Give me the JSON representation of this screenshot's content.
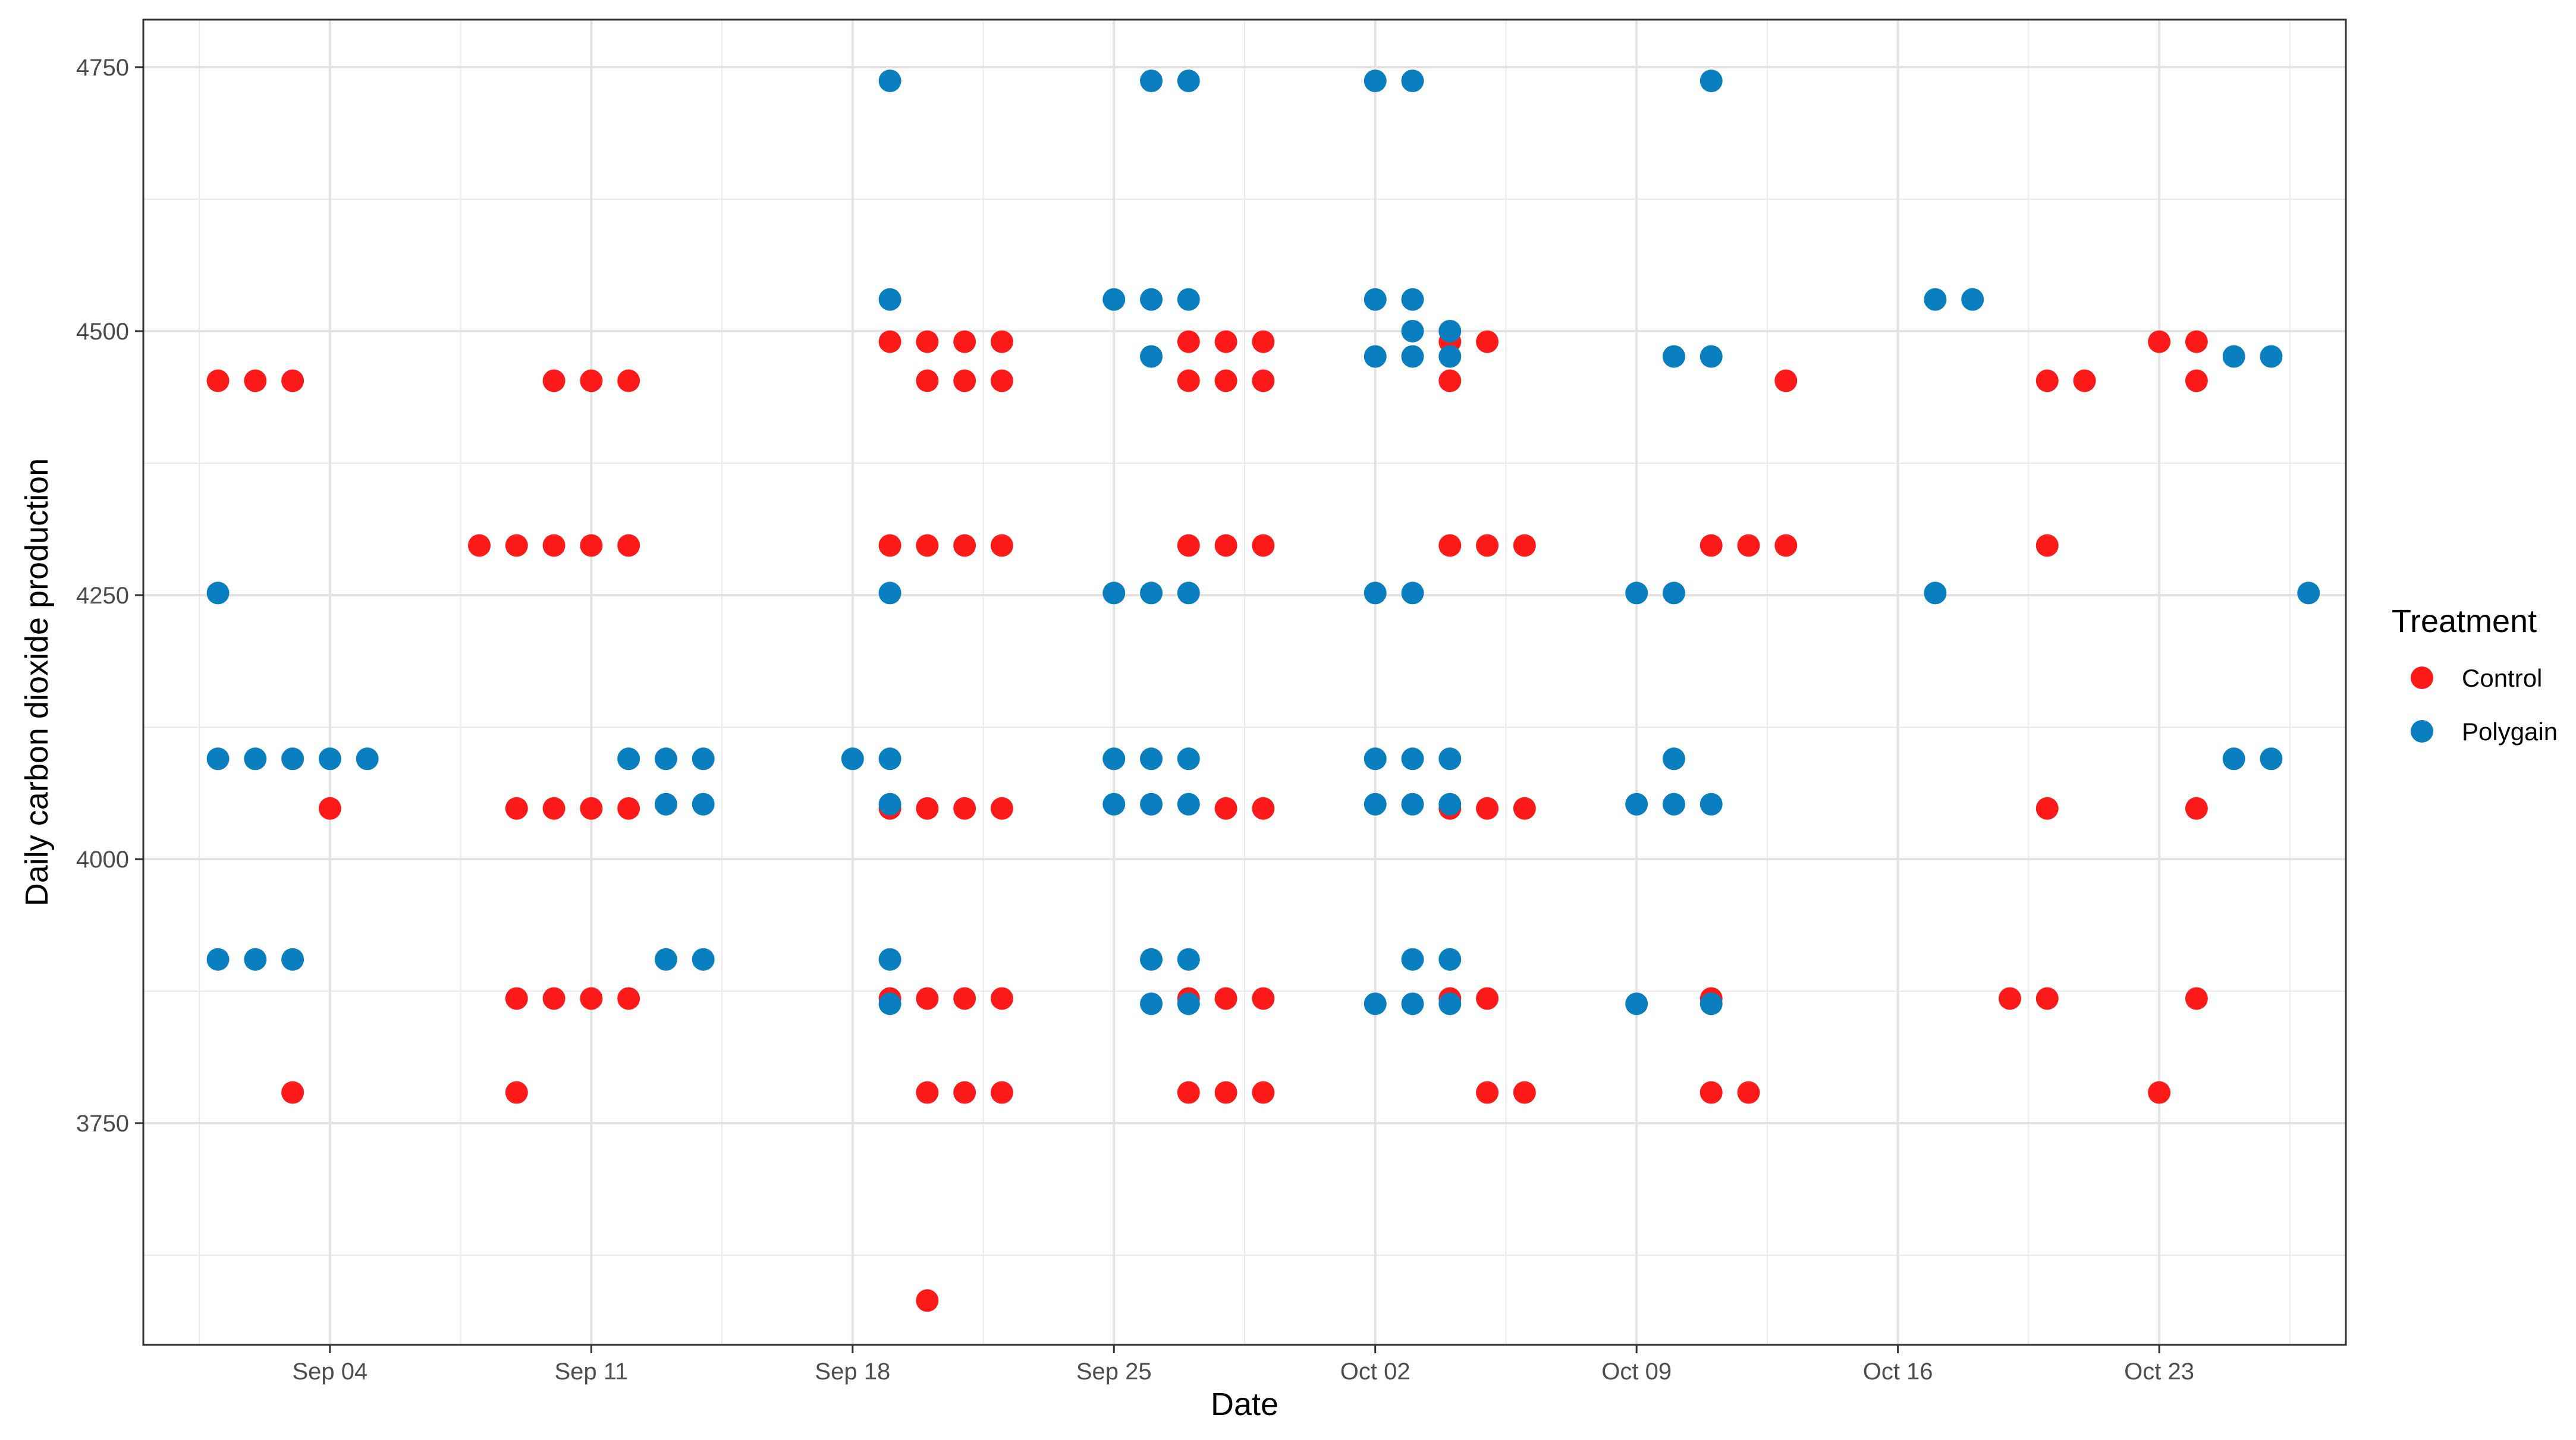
{
  "chart_data": {
    "type": "scatter",
    "title": "",
    "xlabel": "Date",
    "ylabel": "Daily carbon dioxide production",
    "x_axis_type": "date",
    "xlim": [
      "2023-08-30",
      "2023-10-28"
    ],
    "ylim": [
      3540,
      4795
    ],
    "x_ticks": [
      {
        "date": "2023-09-04",
        "label": "Sep 04"
      },
      {
        "date": "2023-09-11",
        "label": "Sep 11"
      },
      {
        "date": "2023-09-18",
        "label": "Sep 18"
      },
      {
        "date": "2023-09-25",
        "label": "Sep 25"
      },
      {
        "date": "2023-10-02",
        "label": "Oct 02"
      },
      {
        "date": "2023-10-09",
        "label": "Oct 09"
      },
      {
        "date": "2023-10-16",
        "label": "Oct 16"
      },
      {
        "date": "2023-10-23",
        "label": "Oct 23"
      }
    ],
    "y_ticks": [
      3750,
      4000,
      4250,
      4500,
      4750
    ],
    "grid": true,
    "legend": {
      "title": "Treatment",
      "position": "right"
    },
    "series": [
      {
        "name": "Control",
        "color": "#ff1a1a",
        "points": [
          [
            "2023-09-01",
            4453
          ],
          [
            "2023-09-02",
            4453
          ],
          [
            "2023-09-03",
            4453
          ],
          [
            "2023-09-04",
            4048
          ],
          [
            "2023-09-03",
            3779
          ],
          [
            "2023-09-08",
            4297
          ],
          [
            "2023-09-09",
            4297
          ],
          [
            "2023-09-10",
            4297
          ],
          [
            "2023-09-11",
            4297
          ],
          [
            "2023-09-12",
            4297
          ],
          [
            "2023-09-10",
            4453
          ],
          [
            "2023-09-11",
            4453
          ],
          [
            "2023-09-12",
            4453
          ],
          [
            "2023-09-09",
            4048
          ],
          [
            "2023-09-10",
            4048
          ],
          [
            "2023-09-11",
            4048
          ],
          [
            "2023-09-12",
            4048
          ],
          [
            "2023-09-09",
            3868
          ],
          [
            "2023-09-10",
            3868
          ],
          [
            "2023-09-11",
            3868
          ],
          [
            "2023-09-12",
            3868
          ],
          [
            "2023-09-09",
            3779
          ],
          [
            "2023-09-19",
            4490
          ],
          [
            "2023-09-20",
            4490
          ],
          [
            "2023-09-21",
            4490
          ],
          [
            "2023-09-22",
            4490
          ],
          [
            "2023-09-20",
            4453
          ],
          [
            "2023-09-21",
            4453
          ],
          [
            "2023-09-22",
            4453
          ],
          [
            "2023-09-19",
            4297
          ],
          [
            "2023-09-20",
            4297
          ],
          [
            "2023-09-21",
            4297
          ],
          [
            "2023-09-22",
            4297
          ],
          [
            "2023-09-19",
            4048
          ],
          [
            "2023-09-20",
            4048
          ],
          [
            "2023-09-21",
            4048
          ],
          [
            "2023-09-22",
            4048
          ],
          [
            "2023-09-19",
            3868
          ],
          [
            "2023-09-20",
            3868
          ],
          [
            "2023-09-21",
            3868
          ],
          [
            "2023-09-22",
            3868
          ],
          [
            "2023-09-20",
            3779
          ],
          [
            "2023-09-21",
            3779
          ],
          [
            "2023-09-22",
            3779
          ],
          [
            "2023-09-20",
            3582
          ],
          [
            "2023-09-27",
            4490
          ],
          [
            "2023-09-28",
            4490
          ],
          [
            "2023-09-29",
            4490
          ],
          [
            "2023-09-27",
            4453
          ],
          [
            "2023-09-28",
            4453
          ],
          [
            "2023-09-29",
            4453
          ],
          [
            "2023-09-27",
            4297
          ],
          [
            "2023-09-28",
            4297
          ],
          [
            "2023-09-29",
            4297
          ],
          [
            "2023-09-28",
            4048
          ],
          [
            "2023-09-29",
            4048
          ],
          [
            "2023-09-27",
            3868
          ],
          [
            "2023-09-28",
            3868
          ],
          [
            "2023-09-29",
            3868
          ],
          [
            "2023-09-27",
            3779
          ],
          [
            "2023-09-28",
            3779
          ],
          [
            "2023-09-29",
            3779
          ],
          [
            "2023-10-04",
            4490
          ],
          [
            "2023-10-05",
            4490
          ],
          [
            "2023-10-04",
            4453
          ],
          [
            "2023-10-04",
            4297
          ],
          [
            "2023-10-05",
            4297
          ],
          [
            "2023-10-06",
            4297
          ],
          [
            "2023-10-04",
            4048
          ],
          [
            "2023-10-05",
            4048
          ],
          [
            "2023-10-06",
            4048
          ],
          [
            "2023-10-04",
            3868
          ],
          [
            "2023-10-05",
            3868
          ],
          [
            "2023-10-05",
            3779
          ],
          [
            "2023-10-06",
            3779
          ],
          [
            "2023-10-13",
            4453
          ],
          [
            "2023-10-11",
            4297
          ],
          [
            "2023-10-12",
            4297
          ],
          [
            "2023-10-13",
            4297
          ],
          [
            "2023-10-11",
            3868
          ],
          [
            "2023-10-11",
            3779
          ],
          [
            "2023-10-12",
            3779
          ],
          [
            "2023-10-20",
            4453
          ],
          [
            "2023-10-21",
            4453
          ],
          [
            "2023-10-20",
            4297
          ],
          [
            "2023-10-20",
            4048
          ],
          [
            "2023-10-19",
            3868
          ],
          [
            "2023-10-20",
            3868
          ],
          [
            "2023-10-23",
            4490
          ],
          [
            "2023-10-24",
            4490
          ],
          [
            "2023-10-24",
            4453
          ],
          [
            "2023-10-24",
            4048
          ],
          [
            "2023-10-24",
            3868
          ],
          [
            "2023-10-23",
            3779
          ]
        ]
      },
      {
        "name": "Polygain",
        "color": "#0a7fc0",
        "points": [
          [
            "2023-09-01",
            4252
          ],
          [
            "2023-09-01",
            4095
          ],
          [
            "2023-09-02",
            4095
          ],
          [
            "2023-09-03",
            4095
          ],
          [
            "2023-09-04",
            4095
          ],
          [
            "2023-09-05",
            4095
          ],
          [
            "2023-09-01",
            3905
          ],
          [
            "2023-09-02",
            3905
          ],
          [
            "2023-09-03",
            3905
          ],
          [
            "2023-09-12",
            4095
          ],
          [
            "2023-09-13",
            4095
          ],
          [
            "2023-09-14",
            4095
          ],
          [
            "2023-09-13",
            4052
          ],
          [
            "2023-09-14",
            4052
          ],
          [
            "2023-09-13",
            3905
          ],
          [
            "2023-09-14",
            3905
          ],
          [
            "2023-09-19",
            4737
          ],
          [
            "2023-09-19",
            4530
          ],
          [
            "2023-09-19",
            4252
          ],
          [
            "2023-09-18",
            4095
          ],
          [
            "2023-09-19",
            4095
          ],
          [
            "2023-09-19",
            4052
          ],
          [
            "2023-09-19",
            3905
          ],
          [
            "2023-09-19",
            3863
          ],
          [
            "2023-09-26",
            4737
          ],
          [
            "2023-09-27",
            4737
          ],
          [
            "2023-09-25",
            4530
          ],
          [
            "2023-09-26",
            4530
          ],
          [
            "2023-09-27",
            4530
          ],
          [
            "2023-09-26",
            4476
          ],
          [
            "2023-09-25",
            4252
          ],
          [
            "2023-09-26",
            4252
          ],
          [
            "2023-09-27",
            4252
          ],
          [
            "2023-09-25",
            4095
          ],
          [
            "2023-09-26",
            4095
          ],
          [
            "2023-09-27",
            4095
          ],
          [
            "2023-09-25",
            4052
          ],
          [
            "2023-09-26",
            4052
          ],
          [
            "2023-09-27",
            4052
          ],
          [
            "2023-09-26",
            3905
          ],
          [
            "2023-09-27",
            3905
          ],
          [
            "2023-09-26",
            3863
          ],
          [
            "2023-09-27",
            3863
          ],
          [
            "2023-10-02",
            4737
          ],
          [
            "2023-10-03",
            4737
          ],
          [
            "2023-10-02",
            4530
          ],
          [
            "2023-10-03",
            4530
          ],
          [
            "2023-10-03",
            4500
          ],
          [
            "2023-10-04",
            4500
          ],
          [
            "2023-10-02",
            4476
          ],
          [
            "2023-10-03",
            4476
          ],
          [
            "2023-10-04",
            4476
          ],
          [
            "2023-10-02",
            4252
          ],
          [
            "2023-10-03",
            4252
          ],
          [
            "2023-10-02",
            4095
          ],
          [
            "2023-10-03",
            4095
          ],
          [
            "2023-10-04",
            4095
          ],
          [
            "2023-10-02",
            4052
          ],
          [
            "2023-10-03",
            4052
          ],
          [
            "2023-10-04",
            4052
          ],
          [
            "2023-10-03",
            3905
          ],
          [
            "2023-10-04",
            3905
          ],
          [
            "2023-10-02",
            3863
          ],
          [
            "2023-10-03",
            3863
          ],
          [
            "2023-10-04",
            3863
          ],
          [
            "2023-10-11",
            4737
          ],
          [
            "2023-10-10",
            4476
          ],
          [
            "2023-10-11",
            4476
          ],
          [
            "2023-10-09",
            4252
          ],
          [
            "2023-10-10",
            4252
          ],
          [
            "2023-10-10",
            4095
          ],
          [
            "2023-10-09",
            4052
          ],
          [
            "2023-10-10",
            4052
          ],
          [
            "2023-10-11",
            4052
          ],
          [
            "2023-10-09",
            3863
          ],
          [
            "2023-10-11",
            3863
          ],
          [
            "2023-10-17",
            4530
          ],
          [
            "2023-10-18",
            4530
          ],
          [
            "2023-10-17",
            4252
          ],
          [
            "2023-10-25",
            4476
          ],
          [
            "2023-10-26",
            4476
          ],
          [
            "2023-10-27",
            4252
          ],
          [
            "2023-10-25",
            4095
          ],
          [
            "2023-10-26",
            4095
          ]
        ]
      }
    ]
  }
}
